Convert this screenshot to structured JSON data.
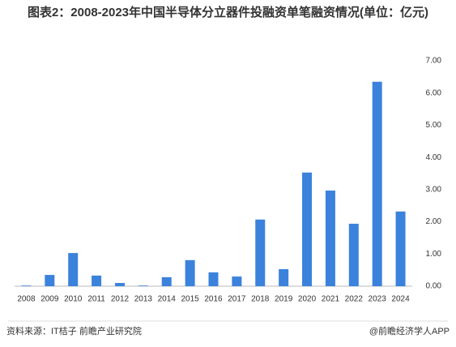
{
  "chart_data": {
    "type": "bar",
    "title": "图表2：2008-2023年中国半导体分立器件投融资单笔融资情况(单位：亿元)",
    "categories": [
      "2008",
      "2009",
      "2010",
      "2011",
      "2012",
      "2013",
      "2014",
      "2015",
      "2016",
      "2017",
      "2018",
      "2019",
      "2020",
      "2021",
      "2022",
      "2023",
      "2024"
    ],
    "values": [
      0.02,
      0.35,
      1.03,
      0.33,
      0.1,
      0.02,
      0.28,
      0.81,
      0.43,
      0.3,
      2.07,
      0.53,
      3.53,
      2.97,
      1.94,
      6.35,
      2.32
    ],
    "color": "#3b82dc",
    "ylim": [
      0,
      7
    ],
    "yticks": [
      {
        "value": 0,
        "label": "0.00"
      },
      {
        "value": 1,
        "label": "1.00"
      },
      {
        "value": 2,
        "label": "2.00"
      },
      {
        "value": 3,
        "label": "3.00"
      },
      {
        "value": 4,
        "label": "4.00"
      },
      {
        "value": 5,
        "label": "5.00"
      },
      {
        "value": 6,
        "label": "6.00"
      },
      {
        "value": 7,
        "label": "7.00"
      }
    ],
    "grid": false,
    "source": "资料来源：IT桔子 前瞻产业研究院",
    "credit": "@前瞻经济学人APP"
  }
}
